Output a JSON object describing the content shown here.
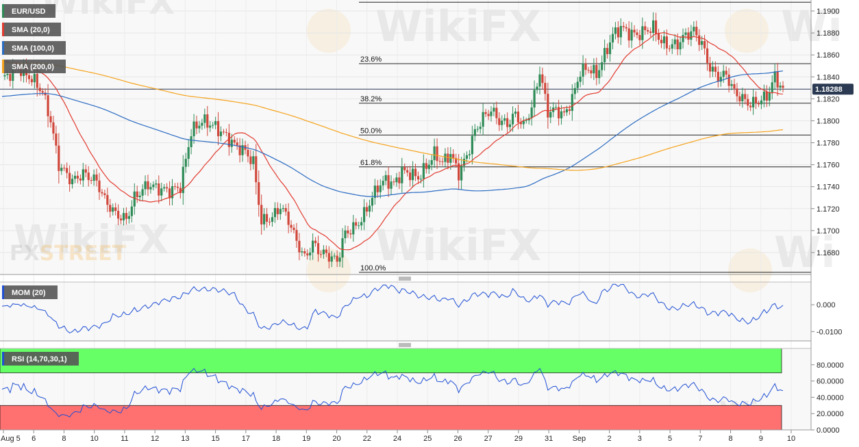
{
  "chart_data": {
    "type": "candlestick",
    "symbol": "EUR/USD",
    "current_price_label": "1.18288",
    "current_price": 1.18288,
    "legend": {
      "main": [
        "EUR/USD",
        "SMA (20,0)",
        "SMA (100,0)",
        "SMA (200,0)"
      ],
      "momentum": "MOM (20)",
      "rsi": "RSI (14,70,30,1)"
    },
    "colors": {
      "up": "#2e8b57",
      "down": "#d0463a",
      "sma20": "#e23a2f",
      "sma100": "#2a6bc2",
      "sma200": "#f5a21a",
      "mom": "#1f4fd4",
      "rsi": "#1f4fd4",
      "overbought_zone": "#66ff66",
      "oversold_zone": "#ff7070"
    },
    "price_axis": {
      "min": 1.166,
      "max": 1.191,
      "ticks": [
        "1.1680",
        "1.1700",
        "1.1720",
        "1.1740",
        "1.1760",
        "1.1780",
        "1.1800",
        "1.1820",
        "1.1840",
        "1.1860",
        "1.1880",
        "1.1900"
      ]
    },
    "mom_axis": {
      "min": -0.0135,
      "max": 0.0085,
      "ticks": [
        "0.000",
        "-0.0100"
      ],
      "tick_values": [
        0,
        -0.01
      ]
    },
    "rsi_axis": {
      "min": 0,
      "max": 100,
      "ticks": [
        "80.0000",
        "60.0000",
        "40.0000",
        "20.0000",
        "0.0000"
      ],
      "tick_values": [
        80,
        60,
        40,
        20,
        0
      ],
      "overbought": 70,
      "oversold": 30
    },
    "x_labels": [
      "Aug 5",
      "6",
      "8",
      "10",
      "11",
      "12",
      "13",
      "15",
      "17",
      "18",
      "19",
      "20",
      "22",
      "24",
      "25",
      "26",
      "27",
      "29",
      "31",
      "Sep",
      "2",
      "3",
      "5",
      "7",
      "8",
      "9",
      "10"
    ],
    "fibonacci": [
      {
        "label": "23.6%",
        "value": 1.1852
      },
      {
        "label": "38.2%",
        "value": 1.1816
      },
      {
        "label": "50.0%",
        "value": 1.1787
      },
      {
        "label": "61.8%",
        "value": 1.1758
      },
      {
        "label": "100.0%",
        "value": 1.1662
      }
    ],
    "fib_high": 1.1908,
    "watermark": [
      "WikiFX",
      "FXSTREET"
    ],
    "anchors": [
      [
        0,
        1.1838
      ],
      [
        6,
        1.1848
      ],
      [
        12,
        1.1836
      ],
      [
        15,
        1.1826
      ],
      [
        18,
        1.18
      ],
      [
        21,
        1.176
      ],
      [
        26,
        1.1745
      ],
      [
        30,
        1.1752
      ],
      [
        35,
        1.1745
      ],
      [
        38,
        1.1728
      ],
      [
        42,
        1.1715
      ],
      [
        46,
        1.171
      ],
      [
        49,
        1.173
      ],
      [
        54,
        1.1742
      ],
      [
        58,
        1.1738
      ],
      [
        62,
        1.1736
      ],
      [
        66,
        1.174
      ],
      [
        70,
        1.179
      ],
      [
        74,
        1.18
      ],
      [
        78,
        1.1796
      ],
      [
        82,
        1.1788
      ],
      [
        86,
        1.1778
      ],
      [
        90,
        1.1772
      ],
      [
        93,
        1.1762
      ],
      [
        96,
        1.1708
      ],
      [
        100,
        1.1712
      ],
      [
        103,
        1.1722
      ],
      [
        106,
        1.171
      ],
      [
        109,
        1.169
      ],
      [
        112,
        1.1675
      ],
      [
        115,
        1.1688
      ],
      [
        118,
        1.168
      ],
      [
        121,
        1.1677
      ],
      [
        124,
        1.1672
      ],
      [
        127,
        1.1698
      ],
      [
        130,
        1.1702
      ],
      [
        133,
        1.171
      ],
      [
        136,
        1.1725
      ],
      [
        139,
        1.174
      ],
      [
        142,
        1.1746
      ],
      [
        145,
        1.1742
      ],
      [
        148,
        1.1754
      ],
      [
        151,
        1.1752
      ],
      [
        154,
        1.1748
      ],
      [
        157,
        1.1758
      ],
      [
        160,
        1.177
      ],
      [
        163,
        1.1762
      ],
      [
        166,
        1.177
      ],
      [
        169,
        1.1752
      ],
      [
        172,
        1.1768
      ],
      [
        175,
        1.179
      ],
      [
        178,
        1.1803
      ],
      [
        181,
        1.181
      ],
      [
        184,
        1.18
      ],
      [
        187,
        1.1797
      ],
      [
        190,
        1.1806
      ],
      [
        193,
        1.1795
      ],
      [
        196,
        1.1812
      ],
      [
        199,
        1.1845
      ],
      [
        202,
        1.1808
      ],
      [
        205,
        1.181
      ],
      [
        208,
        1.1805
      ],
      [
        211,
        1.182
      ],
      [
        214,
        1.1845
      ],
      [
        217,
        1.1848
      ],
      [
        220,
        1.1842
      ],
      [
        223,
        1.186
      ],
      [
        226,
        1.1878
      ],
      [
        229,
        1.1885
      ],
      [
        232,
        1.188
      ],
      [
        235,
        1.1878
      ],
      [
        238,
        1.1882
      ],
      [
        241,
        1.1885
      ],
      [
        244,
        1.1872
      ],
      [
        247,
        1.1868
      ],
      [
        250,
        1.187
      ],
      [
        253,
        1.1878
      ],
      [
        256,
        1.1882
      ],
      [
        259,
        1.187
      ],
      [
        262,
        1.1848
      ],
      [
        265,
        1.184
      ],
      [
        268,
        1.1842
      ],
      [
        271,
        1.1826
      ],
      [
        274,
        1.182
      ],
      [
        277,
        1.1815
      ],
      [
        280,
        1.1818
      ],
      [
        283,
        1.1822
      ],
      [
        286,
        1.184
      ],
      [
        289,
        1.1828
      ]
    ]
  }
}
